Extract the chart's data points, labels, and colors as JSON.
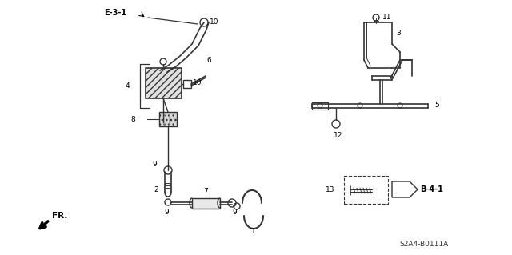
{
  "bg_color": "#ffffff",
  "diagram_id": "S2A4-B0111A",
  "fr_label": "FR.",
  "ref_e31": "E-3-1",
  "ref_b41": "B-4-1",
  "line_color": "#333333",
  "label_color": "#000000"
}
